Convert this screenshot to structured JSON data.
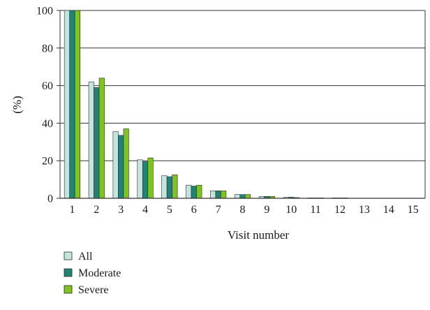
{
  "chart_data": {
    "type": "bar",
    "title": "",
    "xlabel": "Visit number",
    "ylabel": "(%)",
    "ylim": [
      0,
      100
    ],
    "yticks": [
      0,
      20,
      40,
      60,
      80,
      100
    ],
    "grid": "horizontal",
    "legend_position": "bottom-left",
    "categories": [
      "1",
      "2",
      "3",
      "4",
      "5",
      "6",
      "7",
      "8",
      "9",
      "10",
      "11",
      "12",
      "13",
      "14",
      "15"
    ],
    "series": [
      {
        "name": "All",
        "color": "#c4e5df",
        "values": [
          100,
          62,
          35.5,
          20.5,
          12,
          7,
          4,
          2,
          1,
          0.5,
          0.2,
          0.2,
          0,
          0,
          0
        ]
      },
      {
        "name": "Moderate",
        "color": "#1f8474",
        "values": [
          100,
          59,
          33.5,
          19.5,
          11.5,
          6.5,
          4,
          2,
          1,
          0.6,
          0.2,
          0.2,
          0,
          0,
          0
        ]
      },
      {
        "name": "Severe",
        "color": "#7fc31f",
        "values": [
          100,
          64,
          37,
          21.5,
          12.5,
          7,
          4,
          2,
          1,
          0.4,
          0.2,
          0.2,
          0,
          0,
          0
        ]
      }
    ]
  }
}
